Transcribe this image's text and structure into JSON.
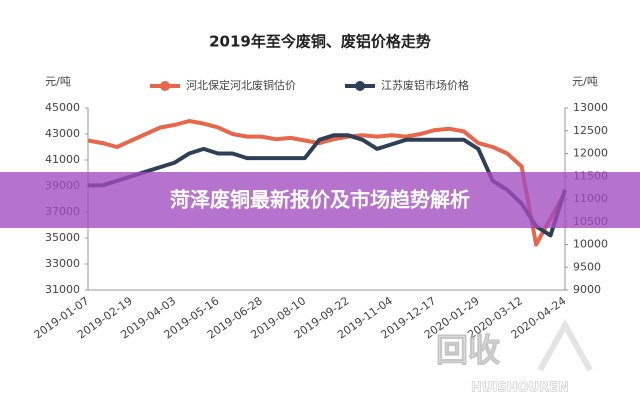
{
  "chart_data": {
    "type": "line",
    "title": "2019年至今废铜、废铝价格走势",
    "ylabel": "元/吨",
    "y2label": "元/吨",
    "categories": [
      "2019-01-07",
      null,
      null,
      "2019-02-19",
      null,
      null,
      "2019-04-03",
      null,
      null,
      "2019-05-16",
      null,
      null,
      "2019-06-28",
      null,
      null,
      "2019-08-10",
      null,
      null,
      "2019-09-22",
      null,
      null,
      "2019-11-04",
      null,
      null,
      "2019-12-17",
      null,
      null,
      "2020-01-29",
      null,
      null,
      "2020-03-12",
      null,
      null,
      "2020-04-24"
    ],
    "series": [
      {
        "name": "河北保定河北废铜估价",
        "color": "#e8664a",
        "axis": "y",
        "values": [
          42500,
          42300,
          42000,
          42500,
          43000,
          43500,
          43700,
          44000,
          43800,
          43500,
          43000,
          42800,
          42800,
          42600,
          42700,
          42500,
          42300,
          42600,
          42800,
          42900,
          42800,
          42900,
          42800,
          43000,
          43300,
          43400,
          43200,
          42300,
          42000,
          41500,
          40500,
          34500,
          36500,
          38500
        ]
      },
      {
        "name": "江苏废铝市场价格",
        "color": "#2e4057",
        "axis": "y2",
        "values": [
          11300,
          11300,
          11400,
          11500,
          11600,
          11700,
          11800,
          12000,
          12100,
          12000,
          12000,
          11900,
          11900,
          11900,
          11900,
          11900,
          12300,
          12400,
          12400,
          12300,
          12100,
          12200,
          12300,
          12300,
          12300,
          12300,
          12300,
          12100,
          11400,
          11200,
          10900,
          10400,
          10200,
          11200
        ]
      }
    ],
    "ylim": [
      31000,
      45000
    ],
    "yticks": [
      31000,
      33000,
      35000,
      37000,
      39000,
      41000,
      43000,
      45000
    ],
    "y2lim": [
      9000,
      13000
    ],
    "y2ticks": [
      9000,
      9500,
      10000,
      10500,
      11000,
      11500,
      12000,
      12500,
      13000
    ],
    "grid": false
  },
  "overlay": {
    "banner": "菏泽废铜最新报价及市场趋势解析",
    "logo": "回收",
    "logo_sub": "HUISHOUREN"
  }
}
